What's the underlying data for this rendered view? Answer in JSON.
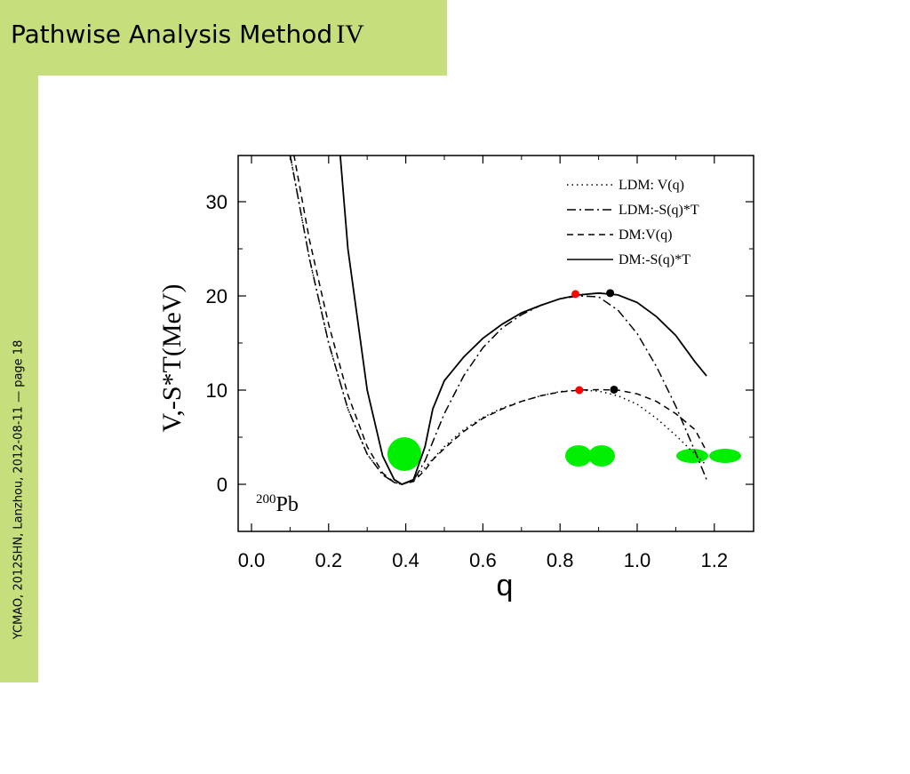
{
  "slide": {
    "title": "Pathwise Analysis Method",
    "title_numeral": "IV",
    "footer": "YCMAO, 2012SHN, Lanzhou, 2012-08-11 — page 18",
    "accent_color": "#c6df7c"
  },
  "chart_data": {
    "type": "line",
    "xlabel": "q",
    "ylabel": "V,-S*T(MeV)",
    "xlim": [
      0.0,
      1.33
    ],
    "ylim": [
      -5,
      35
    ],
    "xticks": [
      "0.0",
      "0.2",
      "0.4",
      "0.6",
      "0.8",
      "1.0",
      "1.2"
    ],
    "yticks": [
      "0",
      "10",
      "20",
      "30"
    ],
    "grid": false,
    "legend_position": "top-right",
    "annotation": {
      "mass": "200",
      "element": "Pb"
    },
    "series": [
      {
        "name": "LDM: V(q)",
        "style": "dotted",
        "x": [
          0.1,
          0.15,
          0.2,
          0.25,
          0.3,
          0.34,
          0.37,
          0.39,
          0.42,
          0.45,
          0.5,
          0.55,
          0.6,
          0.65,
          0.7,
          0.75,
          0.8,
          0.85,
          0.9,
          0.95,
          1.0,
          1.05,
          1.1,
          1.15,
          1.18
        ],
        "y": [
          35,
          24,
          15,
          8,
          3.2,
          1.0,
          0.2,
          0.0,
          0.4,
          1.8,
          4.0,
          5.8,
          7.1,
          8.1,
          8.8,
          9.4,
          9.85,
          10.0,
          9.9,
          9.4,
          8.5,
          7.0,
          5.2,
          3.2,
          2.0
        ]
      },
      {
        "name": "LDM:-S(q)*T",
        "style": "dashdot",
        "x": [
          0.1,
          0.15,
          0.2,
          0.25,
          0.3,
          0.34,
          0.37,
          0.39,
          0.42,
          0.45,
          0.5,
          0.55,
          0.6,
          0.65,
          0.7,
          0.75,
          0.8,
          0.85,
          0.9,
          0.95,
          1.0,
          1.05,
          1.1,
          1.15,
          1.18
        ],
        "y": [
          35,
          24,
          15,
          8,
          3.2,
          1.0,
          0.2,
          0.0,
          0.4,
          2.5,
          7.5,
          11.5,
          14.5,
          16.6,
          18.0,
          19.0,
          19.7,
          20.0,
          19.9,
          18.5,
          16.0,
          12.5,
          8.3,
          3.5,
          0.5
        ]
      },
      {
        "name": "DM:V(q)",
        "style": "dashed",
        "x": [
          0.11,
          0.15,
          0.2,
          0.25,
          0.3,
          0.34,
          0.37,
          0.39,
          0.42,
          0.45,
          0.47,
          0.5,
          0.55,
          0.6,
          0.65,
          0.7,
          0.75,
          0.8,
          0.85,
          0.9,
          0.95,
          1.0,
          1.05,
          1.1,
          1.15,
          1.18
        ],
        "y": [
          35,
          26,
          17,
          9.5,
          4.0,
          1.2,
          0.2,
          0.0,
          0.3,
          1.5,
          2.6,
          3.8,
          5.6,
          7.0,
          8.0,
          8.8,
          9.4,
          9.8,
          10.0,
          10.05,
          10.0,
          9.6,
          8.8,
          7.5,
          5.8,
          3.5
        ]
      },
      {
        "name": "DM:-S(q)*T",
        "style": "solid",
        "x": [
          0.23,
          0.25,
          0.3,
          0.34,
          0.37,
          0.39,
          0.42,
          0.45,
          0.47,
          0.5,
          0.55,
          0.6,
          0.65,
          0.7,
          0.75,
          0.8,
          0.85,
          0.9,
          0.95,
          1.0,
          1.05,
          1.1,
          1.15,
          1.18
        ],
        "y": [
          35,
          25,
          10,
          3.0,
          0.5,
          0.0,
          0.5,
          4.0,
          8.0,
          11.0,
          13.5,
          15.5,
          17.0,
          18.2,
          19.0,
          19.7,
          20.1,
          20.3,
          20.1,
          19.3,
          17.8,
          15.8,
          13.0,
          11.5
        ]
      }
    ],
    "points": [
      {
        "x": 0.84,
        "y": 20.2,
        "color": "#ff0000"
      },
      {
        "x": 0.93,
        "y": 20.3,
        "color": "#000000"
      },
      {
        "x": 0.85,
        "y": 10.0,
        "color": "#ff0000"
      },
      {
        "x": 0.94,
        "y": 10.05,
        "color": "#000000"
      }
    ],
    "shapes_color": "#00ee00"
  }
}
